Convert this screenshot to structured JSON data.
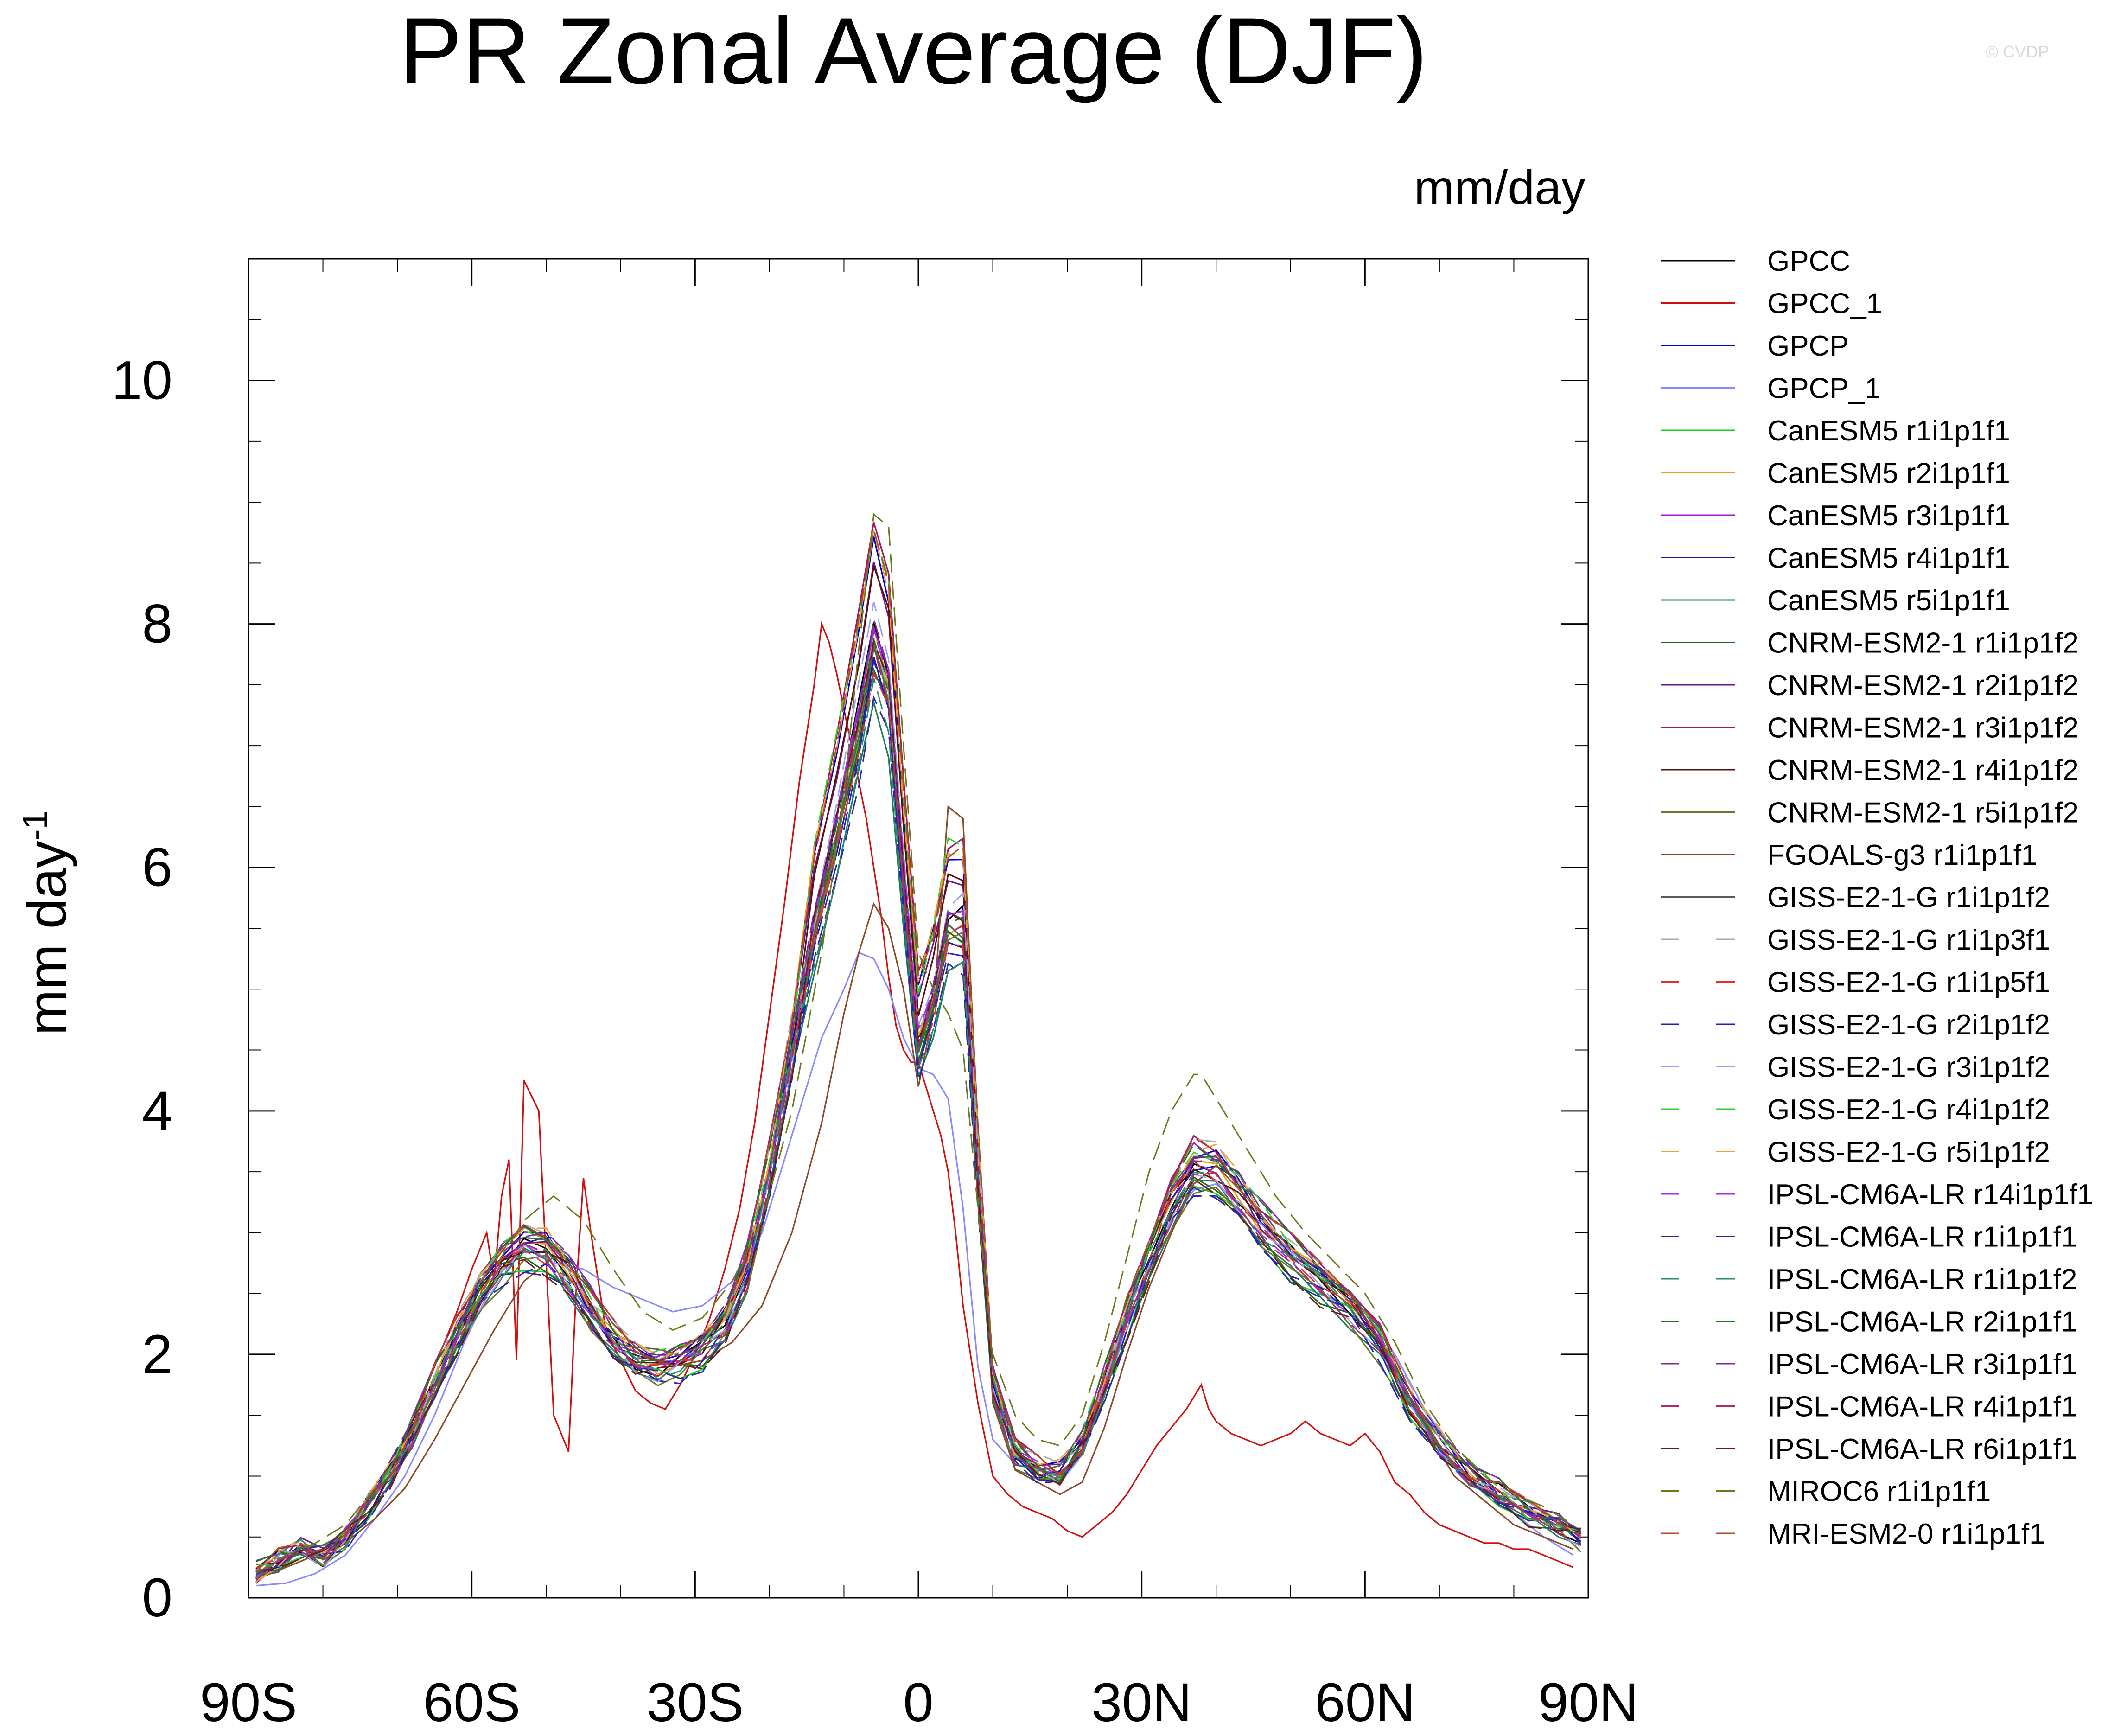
{
  "chart_data": {
    "type": "line",
    "title": "PR Zonal Average (DJF)",
    "units_label": "mm/day",
    "watermark": "© CVDP",
    "ylabel": "mm day",
    "ylabel_superscript": "-1",
    "xlabel": "",
    "xlim": [
      -90,
      90
    ],
    "ylim": [
      0,
      11
    ],
    "x_ticks": [
      {
        "value": -90,
        "label": "90S"
      },
      {
        "value": -60,
        "label": "60S"
      },
      {
        "value": -30,
        "label": "30S"
      },
      {
        "value": 0,
        "label": "0"
      },
      {
        "value": 30,
        "label": "30N"
      },
      {
        "value": 60,
        "label": "60N"
      },
      {
        "value": 90,
        "label": "90N"
      }
    ],
    "y_ticks": [
      {
        "value": 0,
        "label": "0"
      },
      {
        "value": 2,
        "label": "2"
      },
      {
        "value": 4,
        "label": "4"
      },
      {
        "value": 6,
        "label": "6"
      },
      {
        "value": 8,
        "label": "8"
      },
      {
        "value": 10,
        "label": "10"
      }
    ],
    "base_profile": {
      "x": [
        -89,
        -86,
        -83,
        -80,
        -77,
        -74,
        -71,
        -68,
        -65,
        -62,
        -59,
        -56,
        -53,
        -50,
        -47,
        -44,
        -41,
        -38,
        -35,
        -32,
        -29,
        -26,
        -23,
        -20,
        -17,
        -14,
        -11,
        -8,
        -6,
        -4,
        -2,
        0,
        2,
        4,
        6,
        8,
        10,
        13,
        16,
        19,
        22,
        25,
        28,
        31,
        34,
        37,
        40,
        43,
        46,
        50,
        54,
        58,
        62,
        66,
        70,
        74,
        78,
        82,
        86,
        89
      ],
      "y": [
        0.2,
        0.3,
        0.4,
        0.35,
        0.5,
        0.75,
        1.0,
        1.35,
        1.75,
        2.15,
        2.5,
        2.75,
        2.9,
        2.85,
        2.65,
        2.35,
        2.1,
        1.95,
        1.9,
        1.95,
        2.05,
        2.25,
        2.7,
        3.5,
        4.5,
        5.6,
        6.4,
        7.3,
        8.0,
        7.6,
        6.0,
        4.6,
        5.0,
        5.6,
        5.6,
        3.5,
        1.8,
        1.2,
        1.05,
        1.0,
        1.25,
        1.75,
        2.3,
        2.8,
        3.25,
        3.55,
        3.5,
        3.3,
        3.05,
        2.8,
        2.6,
        2.4,
        2.1,
        1.6,
        1.25,
        1.0,
        0.85,
        0.7,
        0.6,
        0.5
      ]
    },
    "series": [
      {
        "name": "GPCC",
        "color": "#000000",
        "dash": "solid"
      },
      {
        "name": "GPCC_1",
        "color": "#d01010",
        "dash": "solid"
      },
      {
        "name": "GPCP",
        "color": "#0000d0",
        "dash": "solid"
      },
      {
        "name": "GPCP_1",
        "color": "#8888ff",
        "dash": "solid"
      },
      {
        "name": "CanESM5 r1i1p1f1",
        "color": "#22cc22",
        "dash": "solid"
      },
      {
        "name": "CanESM5 r2i1p1f1",
        "color": "#e8a020",
        "dash": "solid"
      },
      {
        "name": "CanESM5 r3i1p1f1",
        "color": "#9a20d0",
        "dash": "solid"
      },
      {
        "name": "CanESM5 r4i1p1f1",
        "color": "#1a1a9a",
        "dash": "solid"
      },
      {
        "name": "CanESM5 r5i1p1f1",
        "color": "#207a60",
        "dash": "solid"
      },
      {
        "name": "CNRM-ESM2-1 r1i1p1f2",
        "color": "#1a6a1a",
        "dash": "solid"
      },
      {
        "name": "CNRM-ESM2-1 r2i1p1f2",
        "color": "#6a1a8a",
        "dash": "solid"
      },
      {
        "name": "CNRM-ESM2-1 r3i1p1f2",
        "color": "#a01a5a",
        "dash": "solid"
      },
      {
        "name": "CNRM-ESM2-1 r4i1p1f2",
        "color": "#5a1010",
        "dash": "solid"
      },
      {
        "name": "CNRM-ESM2-1 r5i1p1f2",
        "color": "#6a7a2a",
        "dash": "solid"
      },
      {
        "name": "FGOALS-g3 r1i1p1f1",
        "color": "#8a4a2a",
        "dash": "solid"
      },
      {
        "name": "GISS-E2-1-G r1i1p1f2",
        "color": "#5a5a5a",
        "dash": "solid"
      },
      {
        "name": "GISS-E2-1-G r1i1p3f1",
        "color": "#aaaaaa",
        "dash": "dashed"
      },
      {
        "name": "GISS-E2-1-G r1i1p5f1",
        "color": "#e03030",
        "dash": "dashed"
      },
      {
        "name": "GISS-E2-1-G r2i1p1f2",
        "color": "#2020c0",
        "dash": "dashed"
      },
      {
        "name": "GISS-E2-1-G r3i1p1f2",
        "color": "#a0a0f0",
        "dash": "dashed"
      },
      {
        "name": "GISS-E2-1-G r4i1p1f2",
        "color": "#30d030",
        "dash": "dashed"
      },
      {
        "name": "GISS-E2-1-G r5i1p1f2",
        "color": "#f0a030",
        "dash": "dashed"
      },
      {
        "name": "IPSL-CM6A-LR r14i1p1f1",
        "color": "#a030e0",
        "dash": "dashed"
      },
      {
        "name": "IPSL-CM6A-LR r1i1p1f1",
        "color": "#2a2aa0",
        "dash": "dashed"
      },
      {
        "name": "IPSL-CM6A-LR r1i1p1f2",
        "color": "#2a8a6a",
        "dash": "dashed"
      },
      {
        "name": "IPSL-CM6A-LR r2i1p1f1",
        "color": "#1a7a1a",
        "dash": "dashed"
      },
      {
        "name": "IPSL-CM6A-LR r3i1p1f1",
        "color": "#7a2a9a",
        "dash": "dashed"
      },
      {
        "name": "IPSL-CM6A-LR r4i1p1f1",
        "color": "#b02a6a",
        "dash": "dashed"
      },
      {
        "name": "IPSL-CM6A-LR r6i1p1f1",
        "color": "#6a1a1a",
        "dash": "dashed"
      },
      {
        "name": "MIROC6 r1i1p1f1",
        "color": "#6a7a1a",
        "dash": "dashed"
      },
      {
        "name": "MRI-ESM2-0 r1i1p1f1",
        "color": "#b04a2a",
        "dash": "dashed"
      }
    ],
    "highlight_series": [
      {
        "name": "GPCC_1",
        "color": "#c01010",
        "x": [
          -83,
          -80,
          -77,
          -74,
          -71,
          -68,
          -65,
          -62,
          -60,
          -58,
          -57,
          -56,
          -55,
          -54,
          -53,
          -51,
          -49,
          -47,
          -46,
          -45,
          -44,
          -42,
          -40,
          -38,
          -36,
          -34,
          -32,
          -30,
          -28,
          -26,
          -24,
          -22,
          -20,
          -18,
          -16,
          -14,
          -13,
          -12,
          -11,
          -10,
          -9,
          -8,
          -7,
          -6,
          -5,
          -4,
          -3,
          -2,
          -1,
          0,
          1,
          2,
          3,
          4,
          5,
          6,
          8,
          10,
          12,
          14,
          16,
          18,
          20,
          22,
          24,
          26,
          28,
          30,
          32,
          34,
          36,
          37,
          38,
          39,
          40,
          42,
          44,
          46,
          48,
          50,
          52,
          54,
          56,
          58,
          60,
          62,
          64,
          66,
          68,
          70,
          72,
          74,
          76,
          78,
          80,
          82,
          84,
          86,
          88
        ],
        "y": [
          0.35,
          0.4,
          0.55,
          0.8,
          1.05,
          1.45,
          1.9,
          2.35,
          2.7,
          3.0,
          2.6,
          3.3,
          3.6,
          1.95,
          4.25,
          4.0,
          1.5,
          1.2,
          2.5,
          3.45,
          3.0,
          2.2,
          1.95,
          1.7,
          1.6,
          1.55,
          1.75,
          2.0,
          2.3,
          2.7,
          3.2,
          3.9,
          4.8,
          5.7,
          6.7,
          7.5,
          8.0,
          7.85,
          7.6,
          7.3,
          7.0,
          6.7,
          6.4,
          6.0,
          5.6,
          5.1,
          4.7,
          4.5,
          4.4,
          4.4,
          4.2,
          4.0,
          3.8,
          3.5,
          3.0,
          2.4,
          1.6,
          1.0,
          0.85,
          0.75,
          0.7,
          0.65,
          0.55,
          0.5,
          0.6,
          0.7,
          0.85,
          1.05,
          1.25,
          1.4,
          1.55,
          1.65,
          1.75,
          1.55,
          1.45,
          1.35,
          1.3,
          1.25,
          1.3,
          1.35,
          1.45,
          1.35,
          1.3,
          1.25,
          1.35,
          1.2,
          0.95,
          0.85,
          0.7,
          0.6,
          0.55,
          0.5,
          0.45,
          0.45,
          0.4,
          0.4,
          0.35,
          0.3,
          0.25
        ]
      },
      {
        "name": "GPCP_1",
        "color": "#7070ff",
        "x": [
          -89,
          -85,
          -81,
          -77,
          -73,
          -69,
          -65,
          -61,
          -57,
          -53,
          -49,
          -45,
          -41,
          -37,
          -33,
          -29,
          -25,
          -21,
          -17,
          -13,
          -10,
          -8,
          -6,
          -4,
          -2,
          0,
          2,
          4,
          6,
          8,
          10,
          13,
          16,
          19,
          22,
          25,
          28,
          31,
          34,
          37,
          40,
          44,
          48,
          52,
          56,
          60,
          64,
          68,
          72,
          76,
          80,
          84,
          88
        ],
        "y": [
          0.1,
          0.12,
          0.2,
          0.35,
          0.65,
          1.0,
          1.5,
          2.1,
          2.6,
          2.9,
          2.75,
          2.7,
          2.55,
          2.45,
          2.35,
          2.4,
          2.6,
          3.0,
          3.8,
          4.6,
          5.0,
          5.3,
          5.25,
          5.0,
          4.6,
          4.35,
          4.3,
          4.1,
          3.2,
          1.9,
          1.3,
          1.1,
          1.05,
          1.0,
          1.2,
          1.7,
          2.2,
          2.7,
          3.1,
          3.35,
          3.4,
          3.2,
          2.95,
          2.75,
          2.55,
          2.35,
          2.0,
          1.55,
          1.2,
          0.95,
          0.7,
          0.5,
          0.35
        ]
      },
      {
        "name": "FGOALS-g3 r1i1p1f1",
        "color": "#8a5a30",
        "x": [
          -89,
          -85,
          -81,
          -77,
          -73,
          -69,
          -65,
          -61,
          -57,
          -53,
          -49,
          -45,
          -41,
          -37,
          -33,
          -29,
          -25,
          -21,
          -17,
          -13,
          -10,
          -8,
          -6,
          -4,
          -2,
          0,
          2,
          4,
          6,
          8,
          10,
          13,
          16,
          19,
          22,
          25,
          28,
          31,
          34,
          37,
          40,
          44,
          48,
          52,
          56,
          60,
          64,
          68,
          72,
          76,
          80,
          84,
          88
        ],
        "y": [
          0.15,
          0.25,
          0.35,
          0.45,
          0.65,
          0.9,
          1.3,
          1.75,
          2.2,
          2.6,
          2.8,
          2.6,
          2.25,
          2.0,
          1.9,
          1.95,
          2.1,
          2.4,
          3.0,
          3.9,
          4.8,
          5.3,
          5.7,
          5.5,
          5.0,
          4.2,
          4.8,
          6.5,
          6.4,
          3.8,
          1.6,
          1.05,
          0.95,
          0.85,
          0.95,
          1.4,
          2.0,
          2.55,
          3.0,
          3.4,
          3.55,
          3.3,
          3.0,
          2.75,
          2.5,
          2.3,
          1.9,
          1.4,
          1.0,
          0.8,
          0.6,
          0.5,
          0.4
        ]
      },
      {
        "name": "MIROC6 r1i1p1f1",
        "color": "#7a8a20",
        "x": [
          -89,
          -85,
          -81,
          -77,
          -73,
          -69,
          -65,
          -61,
          -57,
          -53,
          -49,
          -45,
          -41,
          -37,
          -33,
          -29,
          -25,
          -21,
          -17,
          -13,
          -10,
          -8,
          -6,
          -4,
          -2,
          0,
          2,
          4,
          6,
          8,
          10,
          13,
          16,
          19,
          22,
          25,
          28,
          31,
          34,
          37,
          38,
          40,
          44,
          48,
          52,
          56,
          60,
          64,
          68,
          72,
          76,
          80,
          84,
          88
        ],
        "y": [
          0.2,
          0.35,
          0.45,
          0.6,
          0.9,
          1.25,
          1.7,
          2.2,
          2.7,
          3.1,
          3.3,
          3.1,
          2.7,
          2.35,
          2.2,
          2.3,
          2.6,
          3.1,
          4.0,
          5.3,
          6.6,
          7.8,
          8.9,
          8.8,
          7.0,
          5.3,
          5.0,
          4.8,
          4.5,
          3.2,
          2.0,
          1.5,
          1.3,
          1.25,
          1.5,
          2.1,
          2.8,
          3.5,
          4.0,
          4.3,
          4.3,
          4.1,
          3.7,
          3.3,
          3.0,
          2.75,
          2.5,
          2.1,
          1.6,
          1.25,
          1.0,
          0.85,
          0.75,
          0.6
        ]
      }
    ]
  }
}
